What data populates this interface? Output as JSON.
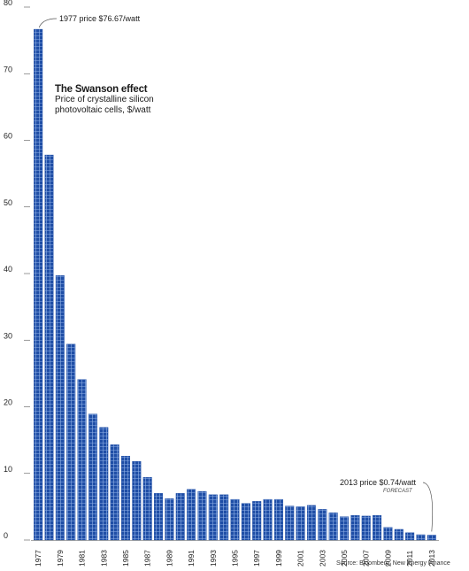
{
  "chart_data": {
    "type": "bar",
    "title": "The Swanson effect",
    "subtitle": "Price of crystalline silicon photovoltaic cells, $/watt",
    "ylabel": "",
    "xlabel": "",
    "ylim": [
      0,
      80
    ],
    "yticks": [
      "0",
      "10",
      "20",
      "30",
      "40",
      "50",
      "60",
      "70",
      "80"
    ],
    "grid": false,
    "categories": [
      "1977",
      "1978",
      "1979",
      "1980",
      "1981",
      "1982",
      "1983",
      "1984",
      "1985",
      "1986",
      "1987",
      "1988",
      "1989",
      "1990",
      "1991",
      "1992",
      "1993",
      "1994",
      "1995",
      "1996",
      "1997",
      "1998",
      "1999",
      "2000",
      "2001",
      "2002",
      "2003",
      "2004",
      "2005",
      "2006",
      "2007",
      "2008",
      "2009",
      "2010",
      "2011",
      "2012",
      "2013"
    ],
    "xtick_labels": [
      "1977",
      "1979",
      "1981",
      "1983",
      "1985",
      "1987",
      "1989",
      "1991",
      "1993",
      "1995",
      "1997",
      "1999",
      "2001",
      "2003",
      "2005",
      "2007",
      "2009",
      "2011",
      "2013"
    ],
    "values": [
      76.67,
      57.8,
      39.7,
      29.4,
      24.1,
      18.9,
      16.9,
      14.3,
      12.6,
      11.8,
      9.4,
      7.0,
      6.2,
      7.0,
      7.6,
      7.3,
      6.8,
      6.8,
      6.1,
      5.5,
      5.8,
      6.1,
      6.1,
      5.1,
      5.0,
      5.2,
      4.6,
      4.1,
      3.5,
      3.7,
      3.6,
      3.7,
      1.9,
      1.6,
      1.1,
      0.8,
      0.74
    ],
    "bar_color": "#1f4ea6",
    "annotations": {
      "first": "1977 price $76.67/watt",
      "last": "2013 price $0.74/watt",
      "last_note": "FORECAST"
    },
    "source": "Source: Bloomberg, New Energy Finance"
  }
}
